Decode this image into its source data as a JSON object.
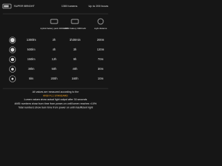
{
  "header": {
    "brand": "SUPER BRIGHT",
    "output": "1300 lumens",
    "runtime": "Up to 200 hours"
  },
  "columns": [
    "Hybrid battery pack 4000mAh",
    "18650 battery 3000mAh",
    "Light distance"
  ],
  "rows": [
    [
      "1300lm",
      "2h",
      "1h30min",
      "200m"
    ],
    [
      "500lm",
      "4h",
      "3h",
      "120m"
    ],
    [
      "150lm",
      "12h",
      "9h",
      "70m"
    ],
    [
      "30lm",
      "50h",
      "40h",
      "30m"
    ],
    [
      "5lm",
      "200h",
      "160h",
      "10m"
    ]
  ],
  "footnotes": [
    "All values are measured according to the",
    "ANSI FL1 STANDARD",
    "Lumen values show actual light output after 30 seconds",
    "ANSI numbers show burn time from power-on until lumen reaches <10%",
    "Total numbers show burn time from power on until insufficient light"
  ]
}
